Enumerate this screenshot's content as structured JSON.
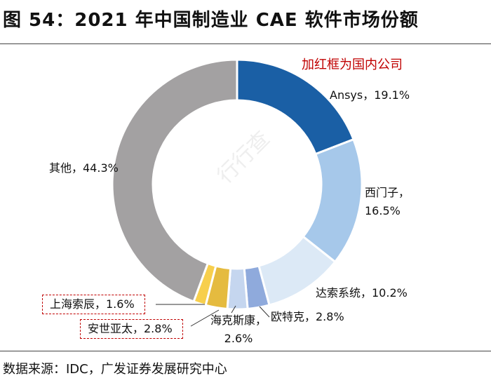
{
  "title": "图 54：2021 年中国制造业 CAE 软件市场份额",
  "note": "加红框为国内公司",
  "source": "数据来源：IDC，广发证券发展研究中心",
  "watermark": "行行查",
  "chart_data": {
    "type": "pie",
    "donut": true,
    "title": "2021 年中国制造业 CAE 软件市场份额",
    "unit": "%",
    "slices": [
      {
        "name": "Ansys",
        "value": 19.1,
        "label": "Ansys，19.1%",
        "color": "#1a5fa5",
        "domestic": false
      },
      {
        "name": "西门子",
        "value": 16.5,
        "label": "西门子，16.5%",
        "color": "#a6c8ea",
        "domestic": false
      },
      {
        "name": "达索系统",
        "value": 10.2,
        "label": "达索系统，10.2%",
        "color": "#dce9f6",
        "domestic": false
      },
      {
        "name": "欧特克",
        "value": 2.8,
        "label": "欧特克，2.8%",
        "color": "#8faadc",
        "domestic": false
      },
      {
        "name": "海克斯康",
        "value": 2.6,
        "label": "海克斯康，2.6%",
        "color": "#c5d6ef",
        "domestic": false
      },
      {
        "name": "安世亚太",
        "value": 2.8,
        "label": "安世亚太，2.8%",
        "color": "#e5bb3f",
        "domestic": true
      },
      {
        "name": "上海索辰",
        "value": 1.6,
        "label": "上海索辰，1.6%",
        "color": "#f7cf4d",
        "domestic": true
      },
      {
        "name": "其他",
        "value": 44.3,
        "label": "其他，44.3%",
        "color": "#a3a1a2",
        "domestic": false
      }
    ]
  }
}
